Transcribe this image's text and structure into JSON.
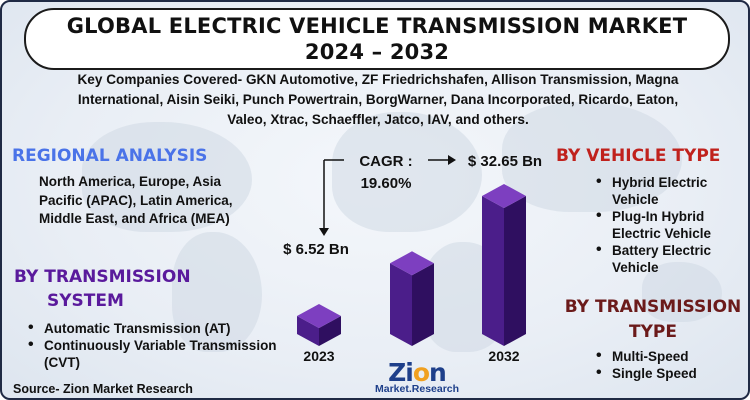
{
  "title": {
    "line1": "GLOBAL ELECTRIC VEHICLE TRANSMISSION MARKET",
    "line2": "2024 – 2032"
  },
  "companies_text": "Key Companies Covered- GKN Automotive, ZF Friedrichshafen, Allison Transmission, Magna International, Aisin Seiki, Punch Powertrain, BorgWarner, Dana Incorporated, Ricardo, Eaton, Valeo, Xtrac, Schaeffler, Jatco, IAV, and others.",
  "regional": {
    "heading": "REGIONAL ANALYSIS",
    "text": "North America, Europe, Asia Pacific (APAC), Latin America, Middle East, and Africa (MEA)"
  },
  "transmission_system": {
    "heading_line1": "BY TRANSMISSION",
    "heading_line2": "SYSTEM",
    "items": [
      "Automatic Transmission (AT)",
      "Continuously Variable Transmission (CVT)"
    ]
  },
  "vehicle_type": {
    "heading": "BY VEHICLE TYPE",
    "items": [
      "Hybrid Electric Vehicle",
      "Plug-In Hybrid Electric Vehicle",
      "Battery Electric Vehicle"
    ]
  },
  "transmission_type": {
    "heading_line1": "BY TRANSMISSION",
    "heading_line2": "TYPE",
    "items": [
      "Multi-Speed",
      "Single Speed"
    ]
  },
  "source": "Source- Zion Market Research",
  "logo": {
    "main_a": "Zi",
    "main_o": "o",
    "main_b": "n",
    "sub": "Market.Research"
  },
  "colors": {
    "bar_top": "#7d3fc0",
    "bar_front": "#4b1e8a",
    "bar_side": "#2f0f60",
    "regional": "#4a73e8",
    "vehicle": "#c0211c"
  },
  "chart_data": {
    "type": "bar",
    "categories": [
      "2023",
      "",
      "2032"
    ],
    "labeled_values": [
      "$ 6.52 Bn",
      "",
      "$ 32.65 Bn"
    ],
    "values": [
      6.52,
      18.0,
      32.65
    ],
    "cagr_label": "CAGR :",
    "cagr_value": "19.60%"
  }
}
